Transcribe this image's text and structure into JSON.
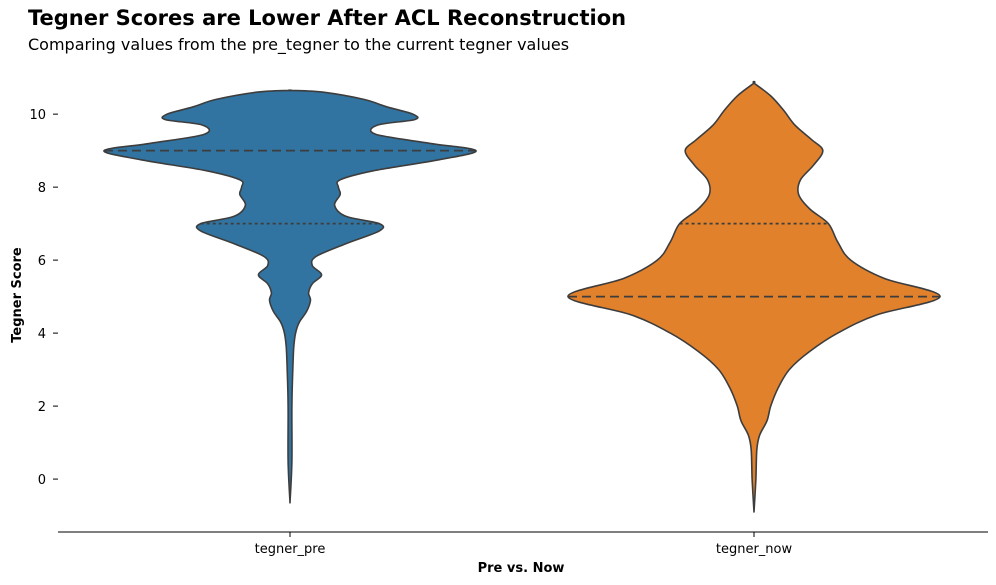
{
  "chart_data": {
    "type": "violin",
    "title": "Tegner Scores are Lower After ACL Reconstruction",
    "subtitle": "Comparing values from the pre_tegner to the current tegner values",
    "xlabel": "Pre vs. Now",
    "ylabel": "Tegner Score",
    "categories": [
      "tegner_pre",
      "tegner_now"
    ],
    "ylim": [
      -1.45,
      11.1
    ],
    "yticks": [
      0,
      2,
      4,
      6,
      8,
      10
    ],
    "grid": false,
    "colors": {
      "tegner_pre": "#3274a1",
      "tegner_now": "#e1812c",
      "edge": "#3d3d3d"
    },
    "series": [
      {
        "category": "tegner_pre",
        "range": [
          -0.65,
          10.65
        ],
        "quartiles": {
          "q1": 7,
          "median": 9,
          "q3": 9
        },
        "density_profile": [
          [
            -0.65,
            0.0
          ],
          [
            0.5,
            0.01
          ],
          [
            2.0,
            0.01
          ],
          [
            3.0,
            0.015
          ],
          [
            3.6,
            0.02
          ],
          [
            4.0,
            0.03
          ],
          [
            4.3,
            0.05
          ],
          [
            4.6,
            0.09
          ],
          [
            4.9,
            0.11
          ],
          [
            5.1,
            0.1
          ],
          [
            5.35,
            0.12
          ],
          [
            5.6,
            0.17
          ],
          [
            5.85,
            0.12
          ],
          [
            6.1,
            0.14
          ],
          [
            6.45,
            0.3
          ],
          [
            6.8,
            0.48
          ],
          [
            7.0,
            0.48
          ],
          [
            7.2,
            0.3
          ],
          [
            7.5,
            0.24
          ],
          [
            7.8,
            0.27
          ],
          [
            8.0,
            0.26
          ],
          [
            8.2,
            0.27
          ],
          [
            8.45,
            0.45
          ],
          [
            8.75,
            0.8
          ],
          [
            9.0,
            1.0
          ],
          [
            9.2,
            0.75
          ],
          [
            9.45,
            0.46
          ],
          [
            9.7,
            0.47
          ],
          [
            9.85,
            0.67
          ],
          [
            10.0,
            0.66
          ],
          [
            10.2,
            0.52
          ],
          [
            10.4,
            0.4
          ],
          [
            10.6,
            0.18
          ],
          [
            10.65,
            0.0
          ]
        ]
      },
      {
        "category": "tegner_now",
        "range": [
          -0.9,
          10.85
        ],
        "quartiles": {
          "q1": 5,
          "median": 5,
          "q3": 7
        },
        "density_profile": [
          [
            -0.9,
            0.0
          ],
          [
            0.0,
            0.01
          ],
          [
            0.8,
            0.015
          ],
          [
            1.2,
            0.03
          ],
          [
            1.6,
            0.07
          ],
          [
            2.0,
            0.09
          ],
          [
            2.5,
            0.13
          ],
          [
            3.0,
            0.19
          ],
          [
            3.5,
            0.3
          ],
          [
            4.0,
            0.45
          ],
          [
            4.5,
            0.66
          ],
          [
            5.0,
            1.0
          ],
          [
            5.5,
            0.7
          ],
          [
            6.0,
            0.52
          ],
          [
            6.5,
            0.45
          ],
          [
            7.0,
            0.4
          ],
          [
            7.4,
            0.3
          ],
          [
            7.8,
            0.24
          ],
          [
            8.2,
            0.25
          ],
          [
            8.6,
            0.32
          ],
          [
            9.0,
            0.37
          ],
          [
            9.3,
            0.31
          ],
          [
            9.7,
            0.22
          ],
          [
            10.1,
            0.16
          ],
          [
            10.5,
            0.09
          ],
          [
            10.85,
            0.0
          ]
        ]
      }
    ]
  }
}
